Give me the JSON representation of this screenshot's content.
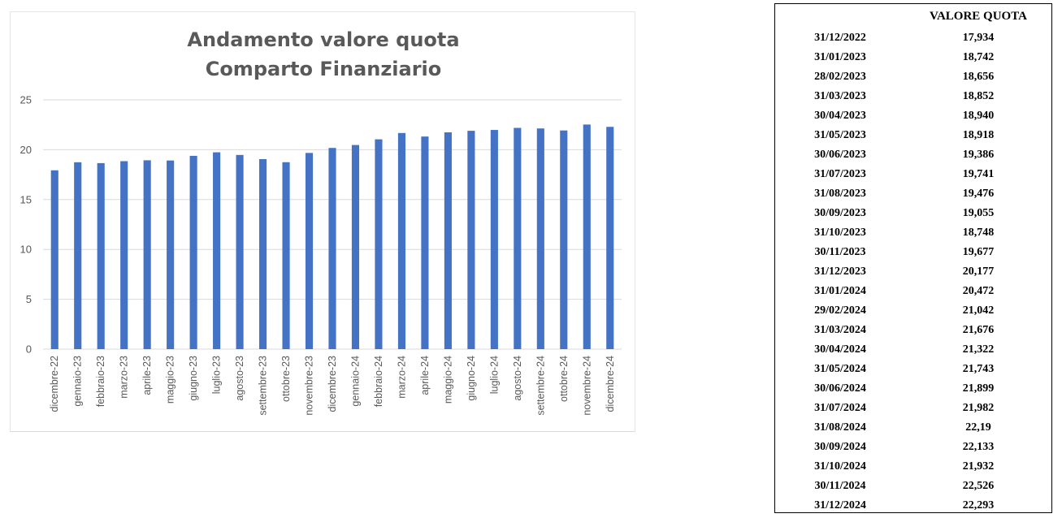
{
  "chart_data": {
    "type": "bar",
    "title_lines": [
      "Andamento valore quota",
      "Comparto Finanziario"
    ],
    "categories": [
      "dicembre-22",
      "gennaio-23",
      "febbraio-23",
      "marzo-23",
      "aprile-23",
      "maggio-23",
      "giugno-23",
      "luglio-23",
      "agosto-23",
      "settembre-23",
      "ottobre-23",
      "novembre-23",
      "dicembre-23",
      "gennaio-24",
      "febbraio-24",
      "marzo-24",
      "aprile-24",
      "maggio-24",
      "giugno-24",
      "luglio-24",
      "agosto-24",
      "settembre-24",
      "ottobre-24",
      "novembre-24",
      "dicembre-24"
    ],
    "values": [
      17.934,
      18.742,
      18.656,
      18.852,
      18.94,
      18.918,
      19.386,
      19.741,
      19.476,
      19.055,
      18.748,
      19.677,
      20.177,
      20.472,
      21.042,
      21.676,
      21.322,
      21.743,
      21.899,
      21.982,
      22.19,
      22.133,
      21.932,
      22.526,
      22.293
    ],
    "ylim": [
      0,
      25
    ],
    "yticks": [
      0,
      5,
      10,
      15,
      20,
      25
    ],
    "grid": true,
    "legend": "none",
    "bar_color": "#4472C4",
    "grid_color": "#d9d9d9",
    "title_color": "#595959"
  },
  "table": {
    "header_date": "",
    "header_value": "VALORE QUOTA",
    "rows": [
      {
        "date": "31/12/2022",
        "value": "17,934"
      },
      {
        "date": "31/01/2023",
        "value": "18,742"
      },
      {
        "date": "28/02/2023",
        "value": "18,656"
      },
      {
        "date": "31/03/2023",
        "value": "18,852"
      },
      {
        "date": "30/04/2023",
        "value": "18,940"
      },
      {
        "date": "31/05/2023",
        "value": "18,918"
      },
      {
        "date": "30/06/2023",
        "value": "19,386"
      },
      {
        "date": "31/07/2023",
        "value": "19,741"
      },
      {
        "date": "31/08/2023",
        "value": "19,476"
      },
      {
        "date": "30/09/2023",
        "value": "19,055"
      },
      {
        "date": "31/10/2023",
        "value": "18,748"
      },
      {
        "date": "30/11/2023",
        "value": "19,677"
      },
      {
        "date": "31/12/2023",
        "value": "20,177"
      },
      {
        "date": "31/01/2024",
        "value": "20,472"
      },
      {
        "date": "29/02/2024",
        "value": "21,042"
      },
      {
        "date": "31/03/2024",
        "value": "21,676"
      },
      {
        "date": "30/04/2024",
        "value": "21,322"
      },
      {
        "date": "31/05/2024",
        "value": "21,743"
      },
      {
        "date": "30/06/2024",
        "value": "21,899"
      },
      {
        "date": "31/07/2024",
        "value": "21,982"
      },
      {
        "date": "31/08/2024",
        "value": "22,19"
      },
      {
        "date": "30/09/2024",
        "value": "22,133"
      },
      {
        "date": "31/10/2024",
        "value": "21,932"
      },
      {
        "date": "30/11/2024",
        "value": "22,526"
      },
      {
        "date": "31/12/2024",
        "value": "22,293"
      }
    ]
  }
}
